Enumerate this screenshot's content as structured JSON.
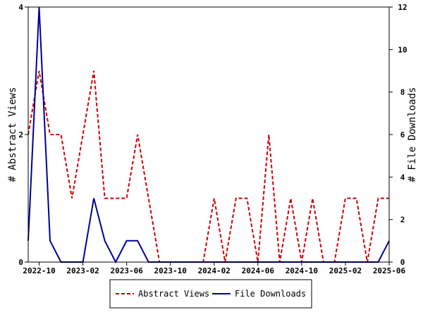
{
  "chart_data": {
    "type": "line",
    "x": [
      "2022-09",
      "2022-10",
      "2022-11",
      "2022-12",
      "2023-01",
      "2023-02",
      "2023-03",
      "2023-04",
      "2023-05",
      "2023-06",
      "2023-07",
      "2023-08",
      "2023-09",
      "2023-10",
      "2023-11",
      "2023-12",
      "2024-01",
      "2024-02",
      "2024-03",
      "2024-04",
      "2024-05",
      "2024-06",
      "2024-07",
      "2024-08",
      "2024-09",
      "2024-10",
      "2024-11",
      "2024-12",
      "2025-01",
      "2025-02",
      "2025-03",
      "2025-04",
      "2025-05",
      "2025-06"
    ],
    "x_tick_labels": [
      "2022-10",
      "2023-02",
      "2023-06",
      "2023-10",
      "2024-02",
      "2024-06",
      "2024-10",
      "2025-02",
      "2025-06"
    ],
    "x_ticks": [
      "2022-10",
      "2023-02",
      "2023-06",
      "2023-10",
      "2024-02",
      "2024-06",
      "2024-10",
      "2025-02",
      "2025-06"
    ],
    "x_range": [
      "2022-09",
      "2025-06"
    ],
    "y_left": {
      "label": "# Abstract Views",
      "ylim": [
        0,
        4
      ],
      "ticks": [
        0,
        2,
        4
      ]
    },
    "y_right": {
      "label": "# File Downloads",
      "ylim": [
        0,
        12
      ],
      "ticks": [
        0,
        2,
        4,
        6,
        8,
        10,
        12
      ]
    },
    "series": [
      {
        "name": "Abstract Views",
        "axis": "left",
        "color": "#cc0000",
        "dash": "dashed",
        "values": [
          2,
          3,
          2,
          2,
          1,
          2,
          3,
          1,
          1,
          1,
          2,
          1,
          0,
          0,
          0,
          0,
          0,
          1,
          0,
          1,
          1,
          0,
          2,
          0,
          1,
          0,
          1,
          0,
          0,
          1,
          1,
          0,
          1,
          1
        ]
      },
      {
        "name": "File Downloads",
        "axis": "right",
        "color": "#000099",
        "dash": "solid",
        "values": [
          1,
          12,
          1,
          0,
          0,
          0,
          3,
          1,
          0,
          1,
          1,
          0,
          0,
          0,
          0,
          0,
          0,
          0,
          0,
          0,
          0,
          0,
          0,
          0,
          0,
          0,
          0,
          0,
          0,
          0,
          0,
          0,
          0,
          1
        ]
      }
    ],
    "grid": false,
    "legend_position": "bottom"
  }
}
